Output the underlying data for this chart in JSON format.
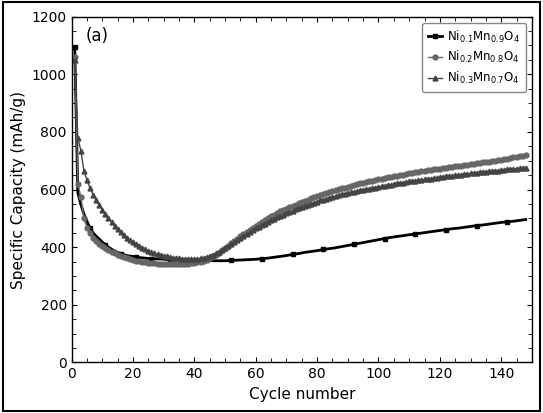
{
  "title_label": "(a)",
  "xlabel": "Cycle number",
  "ylabel": "Specific Capacity (mAh/g)",
  "xlim": [
    0,
    150
  ],
  "ylim": [
    0,
    1200
  ],
  "yticks": [
    0,
    200,
    400,
    600,
    800,
    1000,
    1200
  ],
  "xticks": [
    0,
    20,
    40,
    60,
    80,
    100,
    120,
    140
  ],
  "bg_color": "#ffffff",
  "outer_border_color": "#000000",
  "series": [
    {
      "label": "Ni$_{0.1}$Mn$_{0.9}$O$_4$",
      "color": "#000000",
      "marker": "s",
      "markersize": 3.5,
      "linewidth": 2.0,
      "markevery": 5,
      "points_x": [
        1,
        2,
        3,
        4,
        5,
        6,
        7,
        8,
        9,
        10,
        11,
        12,
        13,
        14,
        15,
        16,
        17,
        18,
        19,
        20,
        21,
        22,
        23,
        24,
        25,
        26,
        27,
        28,
        29,
        30,
        32,
        34,
        36,
        38,
        40,
        42,
        44,
        46,
        48,
        50,
        52,
        54,
        56,
        58,
        60,
        62,
        64,
        66,
        68,
        70,
        72,
        74,
        76,
        78,
        80,
        82,
        84,
        86,
        88,
        90,
        92,
        94,
        96,
        98,
        100,
        102,
        104,
        106,
        108,
        110,
        112,
        114,
        116,
        118,
        120,
        122,
        124,
        126,
        128,
        130,
        132,
        134,
        136,
        138,
        140,
        142,
        144,
        146,
        148
      ],
      "points_y": [
        1095,
        590,
        548,
        515,
        490,
        465,
        450,
        438,
        428,
        418,
        408,
        400,
        393,
        387,
        382,
        378,
        374,
        371,
        369,
        368,
        366,
        364,
        363,
        362,
        361,
        360,
        360,
        359,
        359,
        358,
        357,
        356,
        355,
        355,
        354,
        354,
        353,
        353,
        353,
        353,
        354,
        355,
        356,
        357,
        358,
        360,
        362,
        365,
        368,
        371,
        375,
        378,
        382,
        385,
        388,
        392,
        395,
        398,
        402,
        406,
        410,
        414,
        418,
        422,
        426,
        430,
        434,
        437,
        440,
        443,
        446,
        449,
        452,
        455,
        458,
        461,
        464,
        466,
        469,
        472,
        475,
        477,
        480,
        483,
        486,
        488,
        490,
        493,
        496
      ]
    },
    {
      "label": "Ni$_{0.2}$Mn$_{0.8}$O$_4$",
      "color": "#666666",
      "marker": "o",
      "markersize": 3.5,
      "linewidth": 1.0,
      "markevery": 1,
      "points_x": [
        1,
        2,
        3,
        4,
        5,
        6,
        7,
        8,
        9,
        10,
        11,
        12,
        13,
        14,
        15,
        16,
        17,
        18,
        19,
        20,
        21,
        22,
        23,
        24,
        25,
        26,
        27,
        28,
        29,
        30,
        31,
        32,
        33,
        34,
        35,
        36,
        37,
        38,
        39,
        40,
        41,
        42,
        43,
        44,
        45,
        46,
        47,
        48,
        49,
        50,
        51,
        52,
        53,
        54,
        55,
        56,
        57,
        58,
        59,
        60,
        61,
        62,
        63,
        64,
        65,
        66,
        67,
        68,
        69,
        70,
        71,
        72,
        73,
        74,
        75,
        76,
        77,
        78,
        79,
        80,
        81,
        82,
        83,
        84,
        85,
        86,
        87,
        88,
        89,
        90,
        91,
        92,
        93,
        94,
        95,
        96,
        97,
        98,
        99,
        100,
        101,
        102,
        103,
        104,
        105,
        106,
        107,
        108,
        109,
        110,
        111,
        112,
        113,
        114,
        115,
        116,
        117,
        118,
        119,
        120,
        121,
        122,
        123,
        124,
        125,
        126,
        127,
        128,
        129,
        130,
        131,
        132,
        133,
        134,
        135,
        136,
        137,
        138,
        139,
        140,
        141,
        142,
        143,
        144,
        145,
        146,
        147,
        148
      ],
      "points_y": [
        1060,
        620,
        575,
        500,
        468,
        448,
        432,
        420,
        410,
        403,
        396,
        390,
        384,
        379,
        374,
        370,
        366,
        362,
        359,
        356,
        353,
        351,
        349,
        347,
        346,
        345,
        344,
        343,
        343,
        342,
        342,
        342,
        342,
        342,
        342,
        342,
        343,
        343,
        344,
        345,
        347,
        350,
        353,
        357,
        362,
        368,
        374,
        381,
        389,
        397,
        405,
        413,
        421,
        430,
        438,
        446,
        453,
        461,
        468,
        475,
        482,
        489,
        495,
        501,
        507,
        513,
        519,
        524,
        529,
        534,
        539,
        544,
        548,
        553,
        557,
        561,
        565,
        569,
        573,
        577,
        581,
        585,
        588,
        592,
        595,
        598,
        601,
        604,
        607,
        610,
        613,
        616,
        618,
        621,
        623,
        626,
        628,
        631,
        633,
        635,
        637,
        640,
        642,
        644,
        646,
        648,
        650,
        652,
        654,
        656,
        658,
        660,
        662,
        663,
        665,
        667,
        668,
        670,
        671,
        673,
        674,
        676,
        677,
        679,
        680,
        682,
        683,
        685,
        686,
        688,
        689,
        691,
        692,
        694,
        695,
        696,
        698,
        699,
        701,
        703,
        705,
        707,
        709,
        712,
        714,
        716,
        718,
        720
      ]
    },
    {
      "label": "Ni$_{0.3}$Mn$_{0.7}$O$_4$",
      "color": "#444444",
      "marker": "^",
      "markersize": 3.5,
      "linewidth": 1.0,
      "markevery": 1,
      "points_x": [
        1,
        2,
        3,
        4,
        5,
        6,
        7,
        8,
        9,
        10,
        11,
        12,
        13,
        14,
        15,
        16,
        17,
        18,
        19,
        20,
        21,
        22,
        23,
        24,
        25,
        26,
        27,
        28,
        29,
        30,
        31,
        32,
        33,
        34,
        35,
        36,
        37,
        38,
        39,
        40,
        41,
        42,
        43,
        44,
        45,
        46,
        47,
        48,
        49,
        50,
        51,
        52,
        53,
        54,
        55,
        56,
        57,
        58,
        59,
        60,
        61,
        62,
        63,
        64,
        65,
        66,
        67,
        68,
        69,
        70,
        71,
        72,
        73,
        74,
        75,
        76,
        77,
        78,
        79,
        80,
        81,
        82,
        83,
        84,
        85,
        86,
        87,
        88,
        89,
        90,
        91,
        92,
        93,
        94,
        95,
        96,
        97,
        98,
        99,
        100,
        101,
        102,
        103,
        104,
        105,
        106,
        107,
        108,
        109,
        110,
        111,
        112,
        113,
        114,
        115,
        116,
        117,
        118,
        119,
        120,
        121,
        122,
        123,
        124,
        125,
        126,
        127,
        128,
        129,
        130,
        131,
        132,
        133,
        134,
        135,
        136,
        137,
        138,
        139,
        140,
        141,
        142,
        143,
        144,
        145,
        146,
        147,
        148
      ],
      "points_y": [
        1048,
        780,
        735,
        665,
        632,
        605,
        582,
        562,
        545,
        530,
        515,
        500,
        487,
        474,
        462,
        451,
        441,
        432,
        424,
        417,
        410,
        404,
        398,
        392,
        387,
        383,
        379,
        376,
        373,
        370,
        368,
        366,
        364,
        362,
        361,
        360,
        359,
        359,
        359,
        359,
        360,
        361,
        363,
        366,
        370,
        374,
        379,
        385,
        391,
        397,
        404,
        411,
        418,
        425,
        432,
        439,
        445,
        452,
        458,
        465,
        471,
        477,
        482,
        488,
        493,
        498,
        503,
        508,
        513,
        518,
        522,
        527,
        531,
        535,
        539,
        543,
        547,
        551,
        555,
        558,
        562,
        565,
        568,
        571,
        574,
        577,
        580,
        583,
        585,
        588,
        590,
        592,
        595,
        597,
        599,
        601,
        603,
        605,
        607,
        609,
        611,
        613,
        615,
        617,
        619,
        621,
        623,
        624,
        626,
        628,
        629,
        631,
        632,
        634,
        635,
        637,
        638,
        640,
        641,
        643,
        644,
        646,
        647,
        648,
        650,
        651,
        652,
        653,
        655,
        656,
        657,
        659,
        660,
        661,
        662,
        663,
        664,
        665,
        666,
        668,
        669,
        670,
        671,
        672,
        673,
        674,
        675,
        676
      ]
    }
  ]
}
